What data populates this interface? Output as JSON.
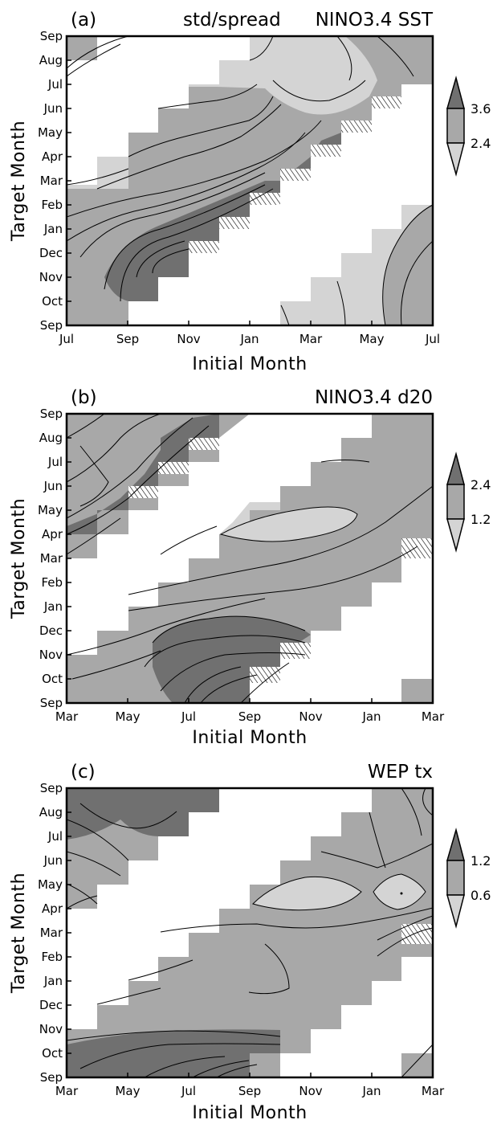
{
  "figure_title": "std/spread",
  "colors": {
    "light": "#d4d4d4",
    "mid": "#a8a8a8",
    "dark": "#707070",
    "white": "#ffffff",
    "line": "#000000"
  },
  "chart_data": [
    {
      "type": "heatmap",
      "panel_label": "(a)",
      "title": "std/spread",
      "variable": "NINO3.4 SST",
      "xlabel": "Initial Month",
      "ylabel": "Target Month",
      "x_ticks": [
        "Jul",
        "Sep",
        "Nov",
        "Jan",
        "Mar",
        "May",
        "Jul"
      ],
      "y_ticks": [
        "Sep",
        "Oct",
        "Nov",
        "Dec",
        "Jan",
        "Feb",
        "Mar",
        "Apr",
        "May",
        "Jun",
        "Jul",
        "Aug",
        "Sep"
      ],
      "colorbar": {
        "levels": [
          "3.6",
          "2.4"
        ]
      },
      "shading": {
        "fill_levels": {
          "light": "below 2.4",
          "mid": "2.4 to 3.6",
          "dark": "above 3.6"
        }
      }
    },
    {
      "type": "heatmap",
      "panel_label": "(b)",
      "variable": "NINO3.4 d20",
      "xlabel": "Initial Month",
      "ylabel": "Target Month",
      "x_ticks": [
        "Mar",
        "May",
        "Jul",
        "Sep",
        "Nov",
        "Jan",
        "Mar"
      ],
      "y_ticks": [
        "Sep",
        "Oct",
        "Nov",
        "Dec",
        "Jan",
        "Feb",
        "Mar",
        "Apr",
        "May",
        "Jun",
        "Jul",
        "Aug",
        "Sep"
      ],
      "colorbar": {
        "levels": [
          "2.4",
          "1.2"
        ]
      },
      "shading": {
        "fill_levels": {
          "light": "below 1.2",
          "mid": "1.2 to 2.4",
          "dark": "above 2.4"
        }
      }
    },
    {
      "type": "heatmap",
      "panel_label": "(c)",
      "variable": "WEP tx",
      "xlabel": "Initial Month",
      "ylabel": "Target Month",
      "x_ticks": [
        "Mar",
        "May",
        "Jul",
        "Sep",
        "Nov",
        "Jan",
        "Mar"
      ],
      "y_ticks": [
        "Sep",
        "Oct",
        "Nov",
        "Dec",
        "Jan",
        "Feb",
        "Mar",
        "Apr",
        "May",
        "Jun",
        "Jul",
        "Aug",
        "Sep"
      ],
      "colorbar": {
        "levels": [
          "1.2",
          "0.6"
        ]
      },
      "shading": {
        "fill_levels": {
          "light": "below 0.6",
          "mid": "0.6 to 1.2",
          "dark": "above 1.2"
        }
      }
    }
  ]
}
